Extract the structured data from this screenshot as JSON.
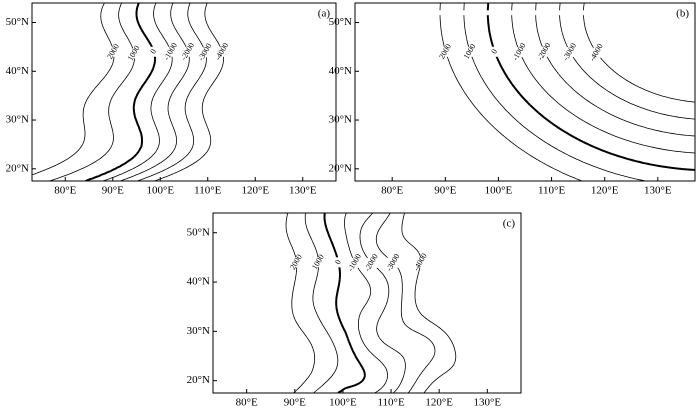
{
  "chart_data": [
    {
      "type": "contour",
      "panel_label": "(a)",
      "xlim": [
        73,
        137
      ],
      "ylim": [
        17.5,
        54
      ],
      "xticks": [
        {
          "value": 80,
          "label": "80°E"
        },
        {
          "value": 90,
          "label": "90°E"
        },
        {
          "value": 100,
          "label": "100°E"
        },
        {
          "value": 110,
          "label": "110°E"
        },
        {
          "value": 120,
          "label": "120°E"
        },
        {
          "value": 130,
          "label": "130°E"
        }
      ],
      "yticks": [
        {
          "value": 20,
          "label": "20°N"
        },
        {
          "value": 30,
          "label": "30°N"
        },
        {
          "value": 40,
          "label": "40°N"
        },
        {
          "value": 50,
          "label": "50°N"
        }
      ],
      "levels": [
        2000,
        1000,
        0,
        -1000,
        -2000,
        -3000,
        -4000
      ]
    },
    {
      "type": "contour",
      "panel_label": "(b)",
      "xlim": [
        73,
        137
      ],
      "ylim": [
        17.5,
        54
      ],
      "xticks": [
        {
          "value": 80,
          "label": "80°E"
        },
        {
          "value": 90,
          "label": "90°E"
        },
        {
          "value": 100,
          "label": "100°E"
        },
        {
          "value": 110,
          "label": "110°E"
        },
        {
          "value": 120,
          "label": "120°E"
        },
        {
          "value": 130,
          "label": "130°E"
        }
      ],
      "yticks": [
        {
          "value": 20,
          "label": "20°N"
        },
        {
          "value": 30,
          "label": "30°N"
        },
        {
          "value": 40,
          "label": "40°N"
        },
        {
          "value": 50,
          "label": "50°N"
        }
      ],
      "levels": [
        2000,
        1000,
        0,
        -1000,
        -2000,
        -3000,
        -4000
      ]
    },
    {
      "type": "contour",
      "panel_label": "(c)",
      "xlim": [
        73,
        137
      ],
      "ylim": [
        17.5,
        54
      ],
      "xticks": [
        {
          "value": 80,
          "label": "80°E"
        },
        {
          "value": 90,
          "label": "90°E"
        },
        {
          "value": 100,
          "label": "100°E"
        },
        {
          "value": 110,
          "label": "110°E"
        },
        {
          "value": 120,
          "label": "120°E"
        },
        {
          "value": 130,
          "label": "130°E"
        }
      ],
      "yticks": [
        {
          "value": 20,
          "label": "20°N"
        },
        {
          "value": 30,
          "label": "30°N"
        },
        {
          "value": 40,
          "label": "40°N"
        },
        {
          "value": 50,
          "label": "50°N"
        }
      ],
      "levels": [
        2000,
        1000,
        0,
        -1000,
        -2000,
        -3000,
        -4000
      ]
    }
  ]
}
